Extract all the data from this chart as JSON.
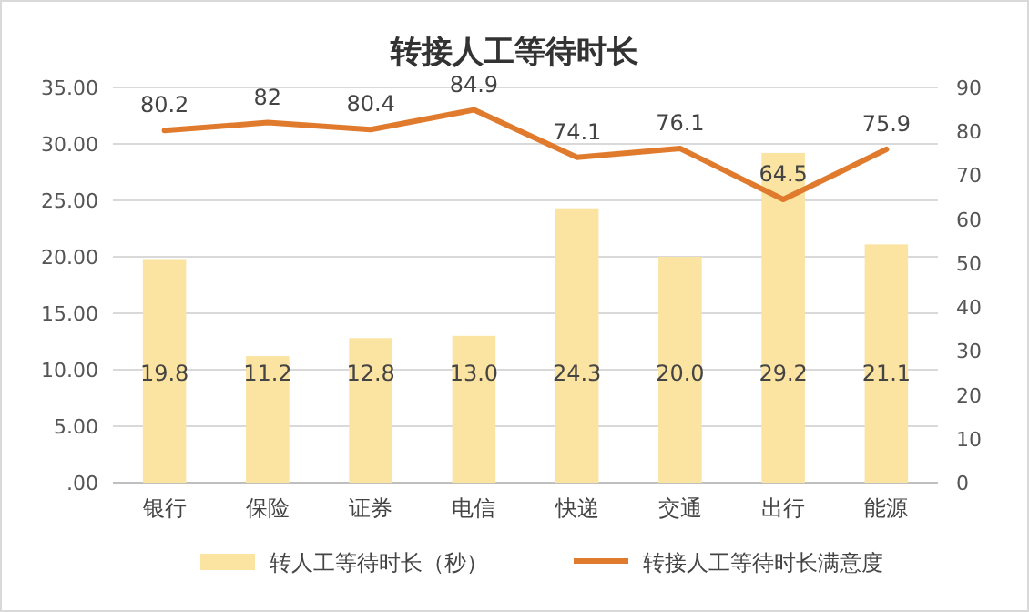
{
  "chart_data": {
    "type": "bar",
    "title": "转接人工等待时长",
    "categories": [
      "银行",
      "保险",
      "证券",
      "电信",
      "快递",
      "交通",
      "出行",
      "能源"
    ],
    "series": [
      {
        "name": "转人工等待时长（秒）",
        "color": "#fbe3a1",
        "values": [
          19.8,
          11.2,
          12.8,
          13.0,
          24.3,
          20.0,
          29.2,
          21.1
        ],
        "value_labels": [
          "19.8",
          "11.2",
          "12.8",
          "13.0",
          "24.3",
          "20.0",
          "29.2",
          "21.1"
        ]
      },
      {
        "name": "转接人工等待时长满意度",
        "type": "line",
        "axis": "y2",
        "color": "#e07b2e",
        "values": [
          80.2,
          82,
          80.4,
          84.9,
          74.1,
          76.1,
          64.5,
          75.9
        ],
        "value_labels": [
          "80.2",
          "82",
          "80.4",
          "84.9",
          "74.1",
          "76.1",
          "64.5",
          "75.9"
        ]
      }
    ],
    "ylim": [
      0,
      35
    ],
    "yticks": [
      {
        "value": 0,
        "label": ".00"
      },
      {
        "value": 5,
        "label": "5.00"
      },
      {
        "value": 10,
        "label": "10.00"
      },
      {
        "value": 15,
        "label": "15.00"
      },
      {
        "value": 20,
        "label": "20.00"
      },
      {
        "value": 25,
        "label": "25.00"
      },
      {
        "value": 30,
        "label": "30.00"
      },
      {
        "value": 35,
        "label": "35.00"
      }
    ],
    "y2lim": [
      0,
      90
    ],
    "y2ticks": [
      0,
      10,
      20,
      30,
      40,
      50,
      60,
      70,
      80,
      90
    ],
    "grid": "y",
    "legend": "bottom"
  }
}
